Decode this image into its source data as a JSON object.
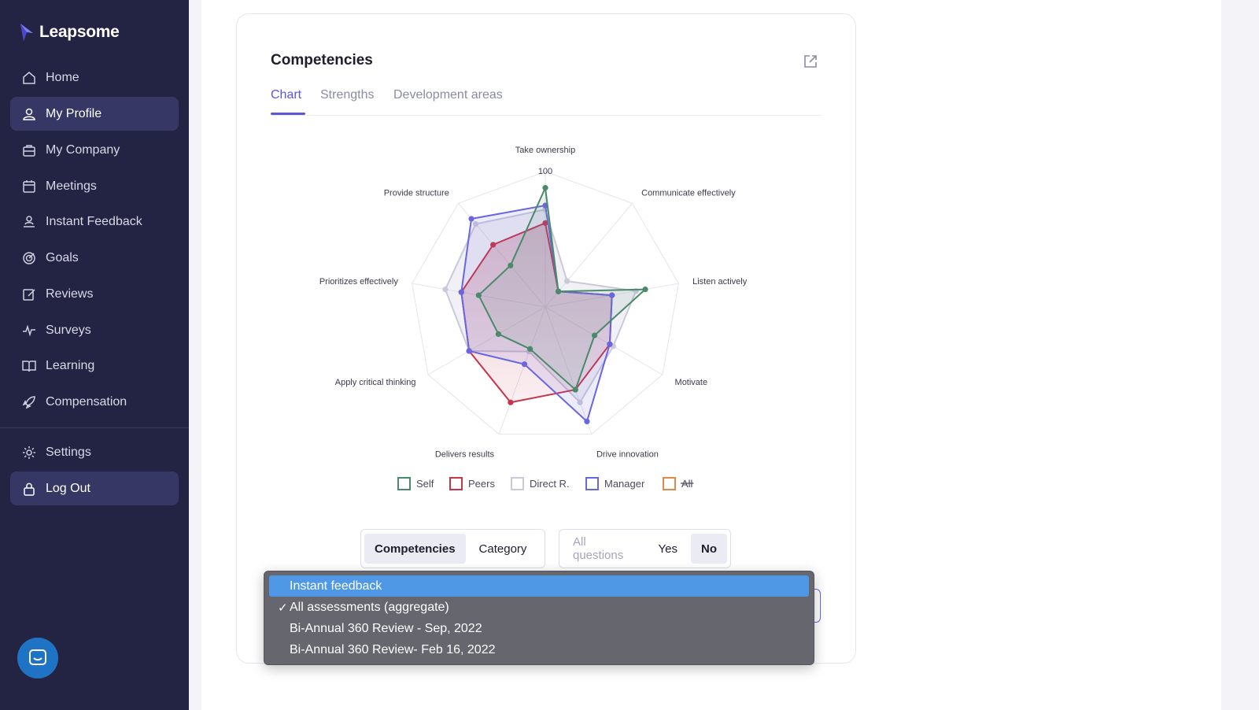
{
  "app": {
    "name": "Leapsome"
  },
  "sidebar": {
    "items": [
      {
        "label": "Home",
        "icon": "home-icon"
      },
      {
        "label": "My Profile",
        "icon": "user-icon",
        "active": true
      },
      {
        "label": "My Company",
        "icon": "briefcase-icon"
      },
      {
        "label": "Meetings",
        "icon": "calendar-icon"
      },
      {
        "label": "Instant Feedback",
        "icon": "feedback-icon"
      },
      {
        "label": "Goals",
        "icon": "target-icon"
      },
      {
        "label": "Reviews",
        "icon": "edit-icon"
      },
      {
        "label": "Surveys",
        "icon": "pulse-icon"
      },
      {
        "label": "Learning",
        "icon": "book-icon"
      },
      {
        "label": "Compensation",
        "icon": "rocket-icon"
      }
    ],
    "bottom_items": [
      {
        "label": "Settings",
        "icon": "gear-icon"
      },
      {
        "label": "Log Out",
        "icon": "lock-icon",
        "active": true
      }
    ]
  },
  "card": {
    "title": "Competencies",
    "tabs": [
      "Chart",
      "Strengths",
      "Development areas"
    ],
    "active_tab": "Chart"
  },
  "chart_data": {
    "type": "radar",
    "max_label": "100",
    "axes": [
      "Take ownership",
      "Communicate effectively",
      "Listen actively",
      "Motivate",
      "Drive innovation",
      "Delivers results",
      "Apply critical thinking",
      "Prioritizes effectively",
      "Provide structure"
    ],
    "series": [
      {
        "name": "Self",
        "color": "#4a8a6a",
        "values": [
          88,
          15,
          75,
          42,
          65,
          33,
          40,
          50,
          40
        ]
      },
      {
        "name": "Peers",
        "color": "#c9344a",
        "values": [
          62,
          15,
          50,
          55,
          65,
          75,
          65,
          63,
          60
        ]
      },
      {
        "name": "Direct R.",
        "color": "#c9c9d9",
        "values": [
          72,
          25,
          68,
          58,
          75,
          35,
          65,
          75,
          80
        ]
      },
      {
        "name": "Manager",
        "color": "#6a66e0",
        "values": [
          75,
          15,
          50,
          55,
          90,
          45,
          65,
          63,
          85
        ]
      },
      {
        "name": "All",
        "color": "#e08a4a",
        "values": [],
        "hidden": true
      }
    ],
    "rlim": [
      0,
      100
    ],
    "legend_position": "bottom"
  },
  "toggles": {
    "group_by": {
      "options": [
        "Competencies",
        "Category"
      ],
      "active": "Competencies"
    },
    "questions": {
      "options": [
        "All questions",
        "Yes",
        "No"
      ],
      "active": "No"
    }
  },
  "dropdown": {
    "items": [
      {
        "label": "Instant feedback",
        "highlighted": true,
        "checked": false
      },
      {
        "label": "All assessments (aggregate)",
        "highlighted": false,
        "checked": true
      },
      {
        "label": "Bi-Annual 360 Review - Sep, 2022",
        "highlighted": false,
        "checked": false
      },
      {
        "label": "Bi-Annual 360 Review- Feb 16, 2022",
        "highlighted": false,
        "checked": false
      }
    ],
    "check_mark": "✓"
  }
}
